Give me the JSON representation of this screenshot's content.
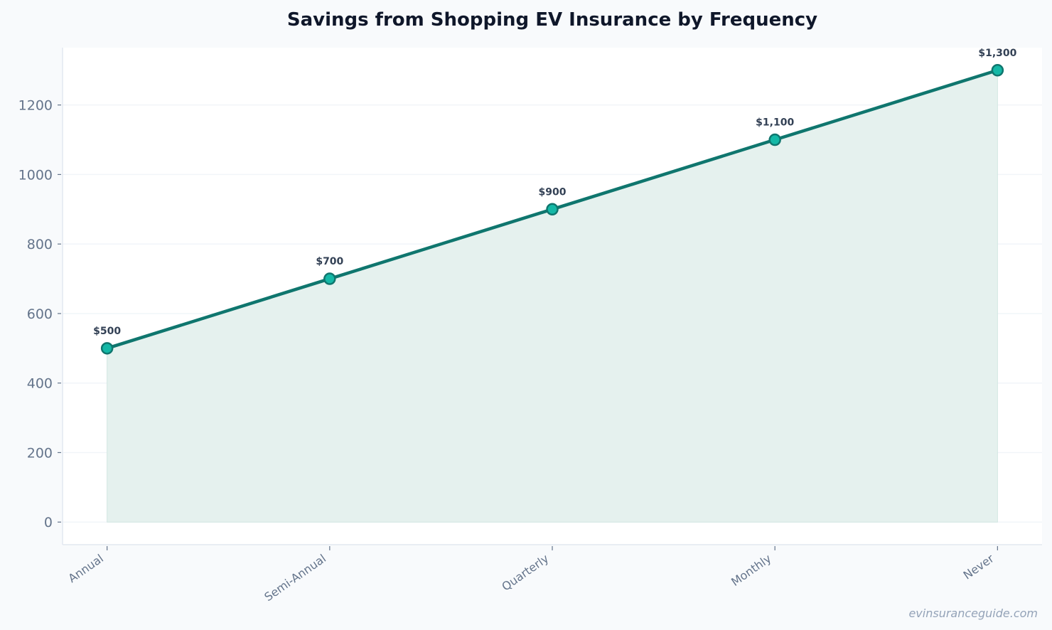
{
  "chart_data": {
    "type": "area",
    "title": "Savings from Shopping EV Insurance by Frequency",
    "xlabel": "",
    "ylabel": "",
    "categories": [
      "Annual",
      "Semi-Annual",
      "Quarterly",
      "Monthly",
      "Never"
    ],
    "values": [
      500,
      700,
      900,
      1100,
      1300
    ],
    "data_labels": [
      "$500",
      "$700",
      "$900",
      "$1,100",
      "$1,300"
    ],
    "ylim": [
      -65,
      1365
    ],
    "yticks": [
      0,
      200,
      400,
      600,
      800,
      1000,
      1200
    ],
    "grid": "horizontal",
    "colors": {
      "line": "#0f766e",
      "marker_fill": "#14b8a6",
      "area_fill": "#e5f1ee",
      "background": "#f8fafc",
      "plot_background": "#ffffff"
    }
  },
  "watermark": "evinsuranceguide.com"
}
